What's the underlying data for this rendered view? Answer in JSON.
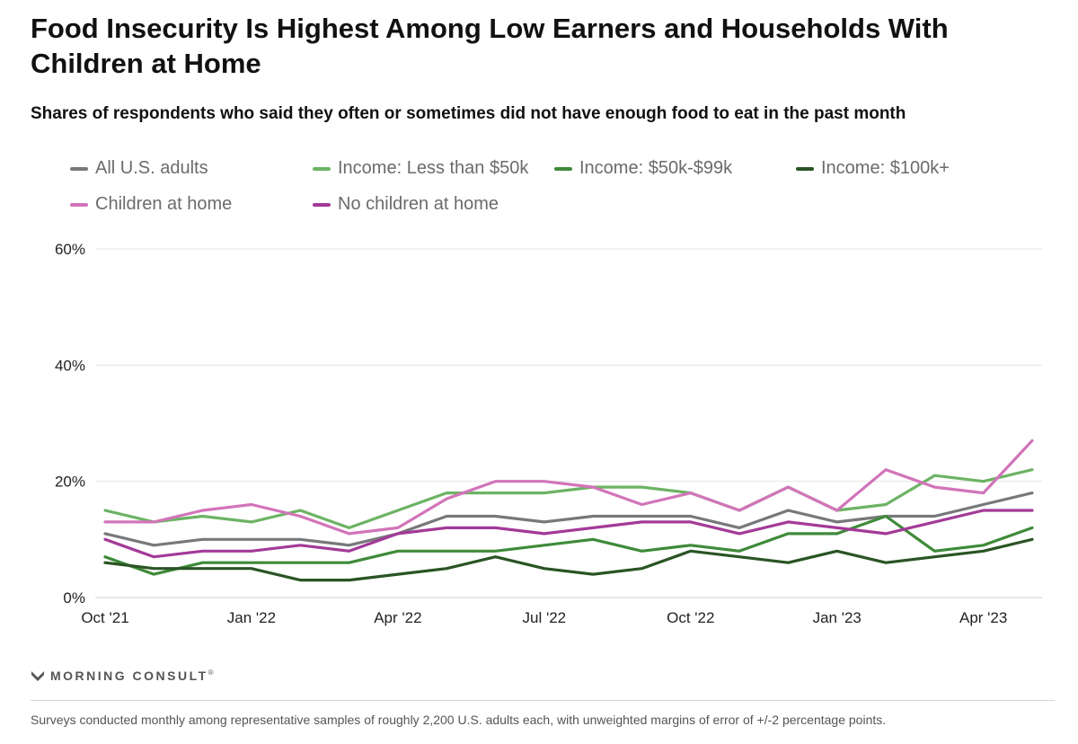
{
  "header": {
    "title": "Food Insecurity Is Highest Among Low Earners and Households With Children at Home",
    "subtitle": "Shares of respondents who said they often or sometimes did not have enough food to eat in the past month"
  },
  "legend": [
    {
      "label": "All U.S. adults",
      "color": "#77787b"
    },
    {
      "label": "Income: Less than $50k",
      "color": "#6cb364"
    },
    {
      "label": "Income: $50k-$99k",
      "color": "#3e8a39"
    },
    {
      "label": "Income: $100k+",
      "color": "#2a5424"
    },
    {
      "label": "Children at home",
      "color": "#d274b9"
    },
    {
      "label": "No children at home",
      "color": "#a33a98"
    }
  ],
  "chart_data": {
    "type": "line",
    "title": "Food Insecurity Is Highest Among Low Earners and Households With Children at Home",
    "subtitle": "Shares of respondents who said they often or sometimes did not have enough food to eat in the past month",
    "xlabel": "",
    "ylabel": "",
    "ylim": [
      0,
      60
    ],
    "y_ticks": [
      "0%",
      "20%",
      "40%",
      "60%"
    ],
    "y_tick_values": [
      0,
      20,
      40,
      60
    ],
    "x_ticks": [
      "Oct '21",
      "Jan '22",
      "Apr '22",
      "Jul '22",
      "Oct '22",
      "Jan '23",
      "Apr '23"
    ],
    "x_tick_indices": [
      0,
      3,
      6,
      9,
      12,
      15,
      18
    ],
    "grid": true,
    "num_points": 20,
    "series": [
      {
        "name": "All U.S. adults",
        "color": "#77787b",
        "values": [
          11,
          9,
          10,
          10,
          10,
          9,
          11,
          14,
          14,
          13,
          14,
          14,
          14,
          12,
          15,
          13,
          14,
          14,
          16,
          18
        ]
      },
      {
        "name": "Income: Less than $50k",
        "color": "#6cb364",
        "values": [
          15,
          13,
          14,
          13,
          15,
          12,
          15,
          18,
          18,
          18,
          19,
          19,
          18,
          15,
          19,
          15,
          16,
          21,
          20,
          22
        ]
      },
      {
        "name": "Income: $50k-$99k",
        "color": "#3e8a39",
        "values": [
          7,
          4,
          6,
          6,
          6,
          6,
          8,
          8,
          8,
          9,
          10,
          8,
          9,
          8,
          11,
          11,
          14,
          8,
          9,
          12
        ]
      },
      {
        "name": "Income: $100k+",
        "color": "#2a5424",
        "values": [
          6,
          5,
          5,
          5,
          3,
          3,
          4,
          5,
          7,
          5,
          4,
          5,
          8,
          7,
          6,
          8,
          6,
          7,
          8,
          10
        ]
      },
      {
        "name": "Children at home",
        "color": "#d274b9",
        "values": [
          13,
          13,
          15,
          16,
          14,
          11,
          12,
          17,
          20,
          20,
          19,
          16,
          18,
          15,
          19,
          15,
          22,
          19,
          18,
          27
        ]
      },
      {
        "name": "No children at home",
        "color": "#a33a98",
        "values": [
          10,
          7,
          8,
          8,
          9,
          8,
          11,
          12,
          12,
          11,
          12,
          13,
          13,
          11,
          13,
          12,
          11,
          13,
          15,
          15
        ]
      }
    ]
  },
  "branding": {
    "logo_text": "MORNING CONSULT",
    "logo_mark": "®"
  },
  "footnote": "Surveys conducted monthly among representative samples of roughly 2,200 U.S. adults each, with unweighted margins of error of +/-2 percentage points."
}
